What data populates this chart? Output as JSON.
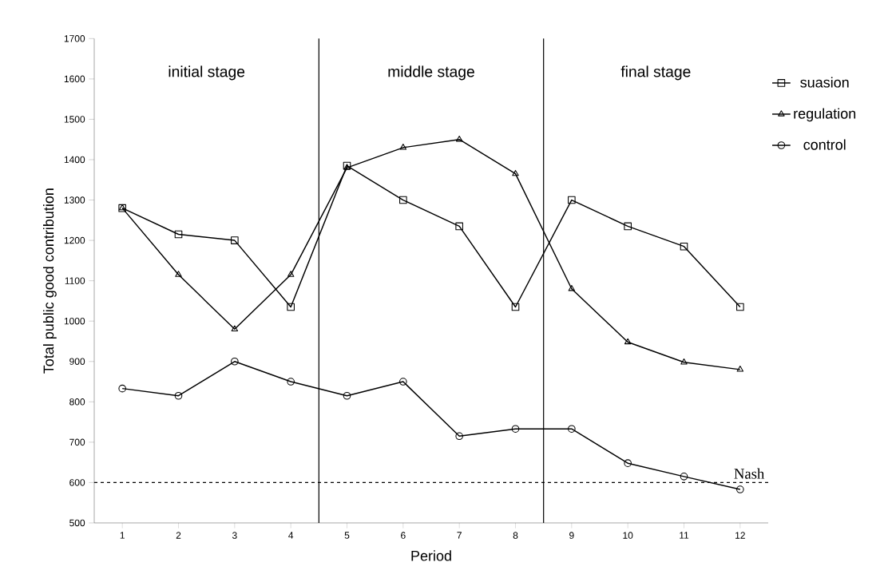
{
  "chart_data": {
    "type": "line",
    "xlabel": "Period",
    "ylabel": "Total public good contribution",
    "x": [
      1,
      2,
      3,
      4,
      5,
      6,
      7,
      8,
      9,
      10,
      11,
      12
    ],
    "series": [
      {
        "name": "suasion",
        "color": "#000000",
        "marker": "square",
        "values": [
          1280,
          1215,
          1200,
          1035,
          1385,
          1300,
          1235,
          1035,
          1300,
          1235,
          1185,
          1035
        ]
      },
      {
        "name": "regulation",
        "color": "#000000",
        "marker": "triangle",
        "values": [
          1280,
          1115,
          980,
          1115,
          1380,
          1430,
          1450,
          1365,
          1080,
          948,
          898,
          880
        ]
      },
      {
        "name": "control",
        "color": "#000000",
        "marker": "circle",
        "values": [
          833,
          815,
          900,
          850,
          815,
          850,
          715,
          733,
          733,
          648,
          615,
          583
        ]
      }
    ],
    "xlim": [
      0.5,
      12.5
    ],
    "xticks": [
      1,
      2,
      3,
      4,
      5,
      6,
      7,
      8,
      9,
      10,
      11,
      12
    ],
    "ylim": [
      500,
      1700
    ],
    "yticks": [
      500,
      600,
      700,
      800,
      900,
      1000,
      1100,
      1200,
      1300,
      1400,
      1500,
      1600,
      1700
    ],
    "ref_lines": [
      {
        "axis": "x",
        "value": 4.5,
        "line_style": "solid"
      },
      {
        "axis": "x",
        "value": 8.5,
        "line_style": "solid"
      },
      {
        "axis": "y",
        "value": 600,
        "label": "Nash",
        "line_style": "dashed"
      }
    ],
    "annotations": [
      "initial stage",
      "middle stage",
      "final stage"
    ],
    "grid": false,
    "legend": "right",
    "line_style": "solid"
  }
}
